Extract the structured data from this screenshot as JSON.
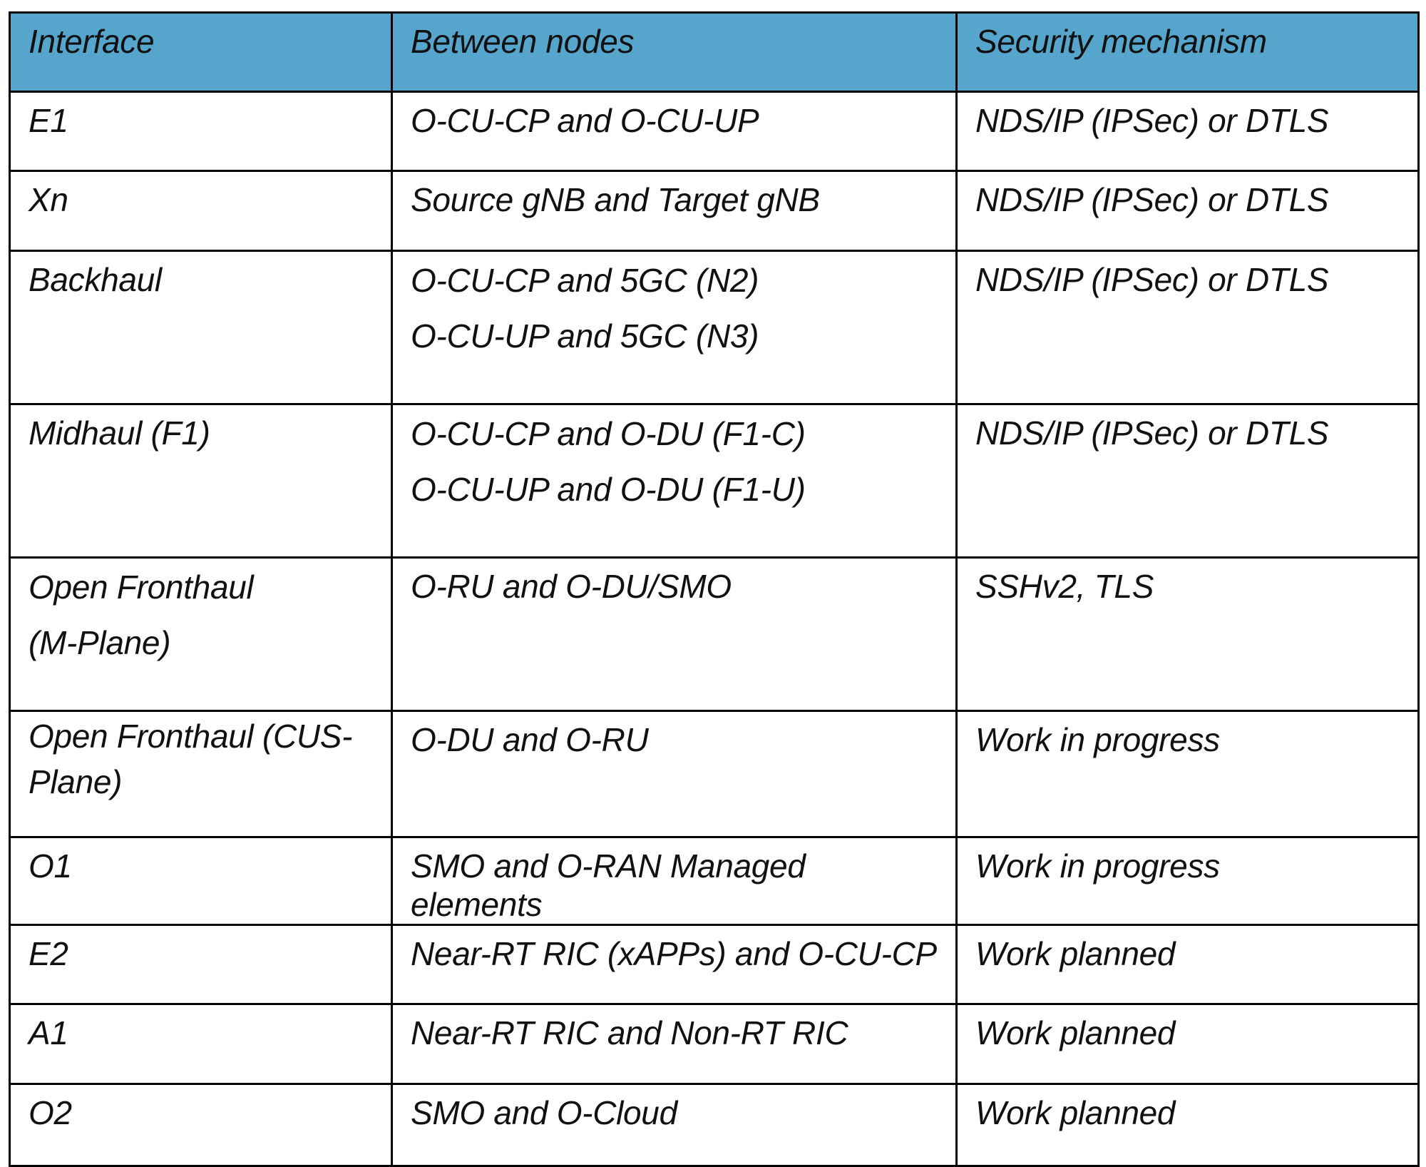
{
  "table": {
    "headers": [
      "Interface",
      "Between nodes",
      "Security mechanism"
    ],
    "rows": [
      {
        "interface": "E1",
        "nodes": [
          "O-CU-CP and O-CU-UP"
        ],
        "security": "NDS/IP (IPSec) or DTLS"
      },
      {
        "interface": "Xn",
        "nodes": [
          "Source gNB and Target gNB"
        ],
        "security": "NDS/IP (IPSec) or DTLS"
      },
      {
        "interface": "Backhaul",
        "nodes": [
          "O-CU-CP and 5GC (N2)",
          "O-CU-UP and 5GC (N3)"
        ],
        "security": "NDS/IP (IPSec) or DTLS"
      },
      {
        "interface": "Midhaul (F1)",
        "nodes": [
          "O-CU-CP and O-DU (F1-C)",
          "O-CU-UP and O-DU (F1-U)"
        ],
        "security": "NDS/IP (IPSec) or DTLS"
      },
      {
        "interface_lines": [
          "Open Fronthaul",
          "(M-Plane)"
        ],
        "nodes": [
          "O-RU and O-DU/SMO"
        ],
        "security": "SSHv2, TLS"
      },
      {
        "interface": "Open Fronthaul (CUS-Plane)",
        "nodes": [
          "O-DU and O-RU"
        ],
        "security": "Work in progress"
      },
      {
        "interface": "O1",
        "nodes": [
          "SMO and O-RAN Managed elements"
        ],
        "security": "Work in progress"
      },
      {
        "interface": "E2",
        "nodes": [
          "Near-RT RIC (xAPPs) and O-CU-CP"
        ],
        "security": "Work planned"
      },
      {
        "interface": "A1",
        "nodes": [
          "Near-RT RIC and Non-RT RIC"
        ],
        "security": "Work planned"
      },
      {
        "interface": "O2",
        "nodes": [
          "SMO and O-Cloud"
        ],
        "security": "Work planned"
      }
    ]
  }
}
